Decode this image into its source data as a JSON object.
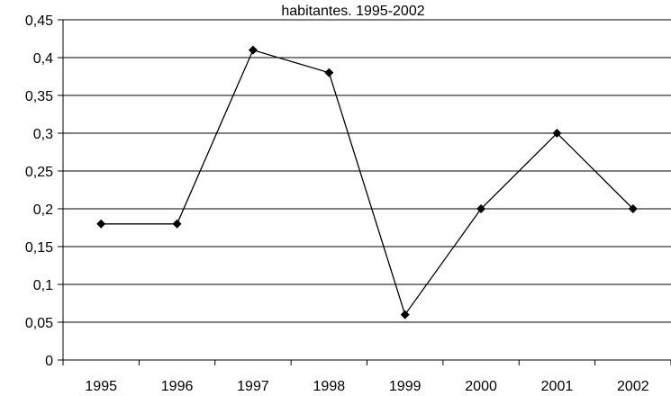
{
  "chart_data": {
    "type": "line",
    "title": "habitantes. 1995-2002",
    "xlabel": "",
    "ylabel": "",
    "categories": [
      "1995",
      "1996",
      "1997",
      "1998",
      "1999",
      "2000",
      "2001",
      "2002"
    ],
    "series": [
      {
        "values": [
          0.18,
          0.18,
          0.41,
          0.38,
          0.06,
          0.2,
          0.3,
          0.2
        ]
      }
    ],
    "ylim": [
      0,
      0.45
    ],
    "yticks": [
      0,
      0.05,
      0.1,
      0.15,
      0.2,
      0.25,
      0.3,
      0.35,
      0.4,
      0.45
    ],
    "ytick_labels": [
      "0",
      "0,05",
      "0,1",
      "0,15",
      "0,2",
      "0,25",
      "0,3",
      "0,35",
      "0,4",
      "0,45"
    ],
    "grid": "horizontal",
    "legend": "none",
    "marker": "diamond",
    "colors": {
      "line": "#000000",
      "grid": "#000000",
      "background": "#ffffff"
    }
  }
}
